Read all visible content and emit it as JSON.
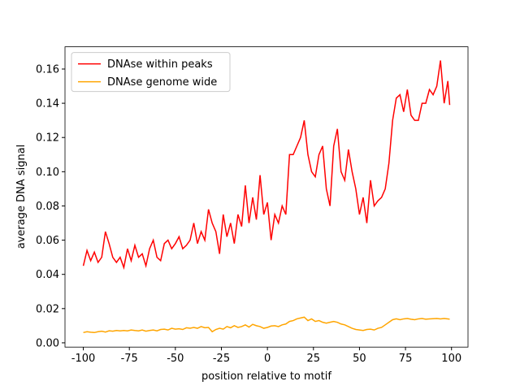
{
  "chart_data": {
    "type": "line",
    "xlabel": "position relative to motif",
    "ylabel": "average DNA signal",
    "x": [
      -100,
      -98,
      -96,
      -94,
      -92,
      -90,
      -88,
      -86,
      -84,
      -82,
      -80,
      -78,
      -76,
      -74,
      -72,
      -70,
      -68,
      -66,
      -64,
      -62,
      -60,
      -58,
      -56,
      -54,
      -52,
      -50,
      -48,
      -46,
      -44,
      -42,
      -40,
      -38,
      -36,
      -34,
      -32,
      -30,
      -28,
      -26,
      -24,
      -22,
      -20,
      -18,
      -16,
      -14,
      -12,
      -10,
      -8,
      -6,
      -4,
      -2,
      0,
      2,
      4,
      6,
      8,
      10,
      12,
      14,
      16,
      18,
      20,
      22,
      24,
      26,
      28,
      30,
      32,
      34,
      36,
      38,
      40,
      42,
      44,
      46,
      48,
      50,
      52,
      54,
      56,
      58,
      60,
      62,
      64,
      66,
      68,
      70,
      72,
      74,
      76,
      78,
      80,
      82,
      84,
      86,
      88,
      90,
      92,
      94,
      96,
      98,
      99
    ],
    "series": [
      {
        "name": "DNAse within peaks",
        "color": "#ff0000",
        "values": [
          0.045,
          0.054,
          0.048,
          0.053,
          0.047,
          0.05,
          0.065,
          0.058,
          0.05,
          0.047,
          0.05,
          0.044,
          0.055,
          0.048,
          0.057,
          0.05,
          0.052,
          0.045,
          0.055,
          0.06,
          0.05,
          0.048,
          0.058,
          0.06,
          0.055,
          0.058,
          0.062,
          0.055,
          0.057,
          0.06,
          0.07,
          0.058,
          0.065,
          0.06,
          0.078,
          0.07,
          0.065,
          0.052,
          0.075,
          0.062,
          0.07,
          0.058,
          0.075,
          0.068,
          0.092,
          0.07,
          0.085,
          0.072,
          0.098,
          0.075,
          0.082,
          0.06,
          0.075,
          0.07,
          0.08,
          0.075,
          0.11,
          0.11,
          0.115,
          0.12,
          0.13,
          0.11,
          0.1,
          0.097,
          0.11,
          0.115,
          0.09,
          0.08,
          0.115,
          0.125,
          0.1,
          0.095,
          0.113,
          0.1,
          0.09,
          0.075,
          0.085,
          0.07,
          0.095,
          0.08,
          0.083,
          0.085,
          0.09,
          0.105,
          0.13,
          0.143,
          0.145,
          0.135,
          0.148,
          0.133,
          0.13,
          0.13,
          0.14,
          0.14,
          0.148,
          0.145,
          0.15,
          0.165,
          0.14,
          0.153,
          0.139
        ]
      },
      {
        "name": "DNAse genome wide",
        "color": "#ffa500",
        "values": [
          0.006,
          0.0065,
          0.0062,
          0.006,
          0.0065,
          0.0068,
          0.0063,
          0.007,
          0.0068,
          0.0072,
          0.007,
          0.0072,
          0.007,
          0.0075,
          0.0072,
          0.007,
          0.0075,
          0.0068,
          0.0072,
          0.0075,
          0.007,
          0.0078,
          0.008,
          0.0075,
          0.0085,
          0.008,
          0.0082,
          0.0078,
          0.0088,
          0.0085,
          0.009,
          0.0085,
          0.0095,
          0.0088,
          0.009,
          0.0065,
          0.0078,
          0.0085,
          0.008,
          0.0095,
          0.0088,
          0.01,
          0.009,
          0.0095,
          0.0105,
          0.0092,
          0.0108,
          0.01,
          0.0095,
          0.0085,
          0.009,
          0.0098,
          0.01,
          0.0095,
          0.0105,
          0.011,
          0.0125,
          0.013,
          0.014,
          0.0145,
          0.015,
          0.013,
          0.014,
          0.0125,
          0.013,
          0.012,
          0.0115,
          0.012,
          0.0125,
          0.012,
          0.011,
          0.0105,
          0.0095,
          0.0085,
          0.0078,
          0.0075,
          0.0072,
          0.0078,
          0.008,
          0.0075,
          0.0085,
          0.009,
          0.0105,
          0.012,
          0.0135,
          0.014,
          0.0135,
          0.014,
          0.0142,
          0.0138,
          0.0135,
          0.014,
          0.0142,
          0.0138,
          0.014,
          0.0141,
          0.0142,
          0.014,
          0.0142,
          0.014,
          0.0138
        ]
      }
    ],
    "xlim": [
      -109.95,
      108.95
    ],
    "xticks": [
      -100,
      -75,
      -50,
      -25,
      0,
      25,
      50,
      75,
      100
    ],
    "ylim": [
      -0.0025,
      0.173
    ],
    "yticks": [
      {
        "value": 0,
        "label": "0.00"
      },
      {
        "value": 0.02,
        "label": "0.02"
      },
      {
        "value": 0.04,
        "label": "0.04"
      },
      {
        "value": 0.06,
        "label": "0.06"
      },
      {
        "value": 0.08,
        "label": "0.08"
      },
      {
        "value": 0.1,
        "label": "0.10"
      },
      {
        "value": 0.12,
        "label": "0.12"
      },
      {
        "value": 0.14,
        "label": "0.14"
      },
      {
        "value": 0.16,
        "label": "0.16"
      }
    ],
    "legend": "upper left",
    "grid": false
  }
}
